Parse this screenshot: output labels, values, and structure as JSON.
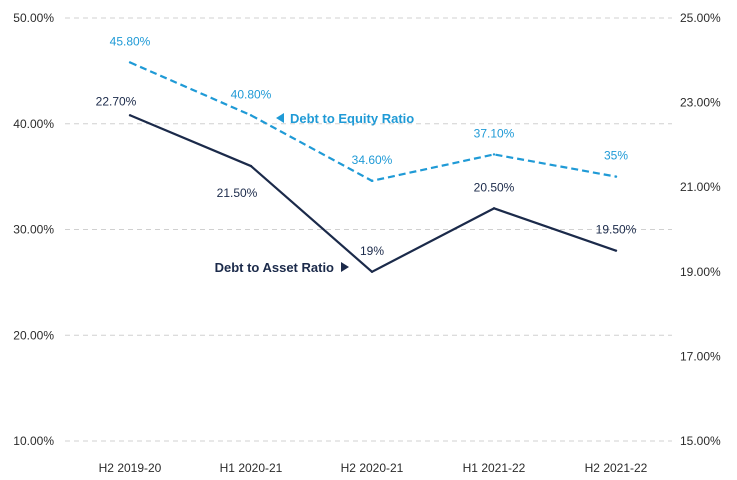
{
  "chart_data": {
    "type": "line",
    "categories": [
      "H2 2019-20",
      "H1 2020-21",
      "H2 2020-21",
      "H1 2021-22",
      "H2 2021-22"
    ],
    "y_left": {
      "ticks": [
        "10.00%",
        "20.00%",
        "30.00%",
        "40.00%",
        "50.00%"
      ],
      "lim": [
        10,
        50
      ]
    },
    "y_right": {
      "ticks": [
        "15.00%",
        "17.00%",
        "19.00%",
        "21.00%",
        "23.00%",
        "25.00%"
      ],
      "lim": [
        15,
        25
      ]
    },
    "grid": "horizontal-dashed",
    "series": [
      {
        "name": "Debt to Equity Ratio",
        "axis": "left",
        "style": "dashed",
        "color": "#1f9ad6",
        "values": [
          45.8,
          40.8,
          34.6,
          37.1,
          35
        ],
        "labels": [
          "45.80%",
          "40.80%",
          "34.60%",
          "37.10%",
          "35%"
        ]
      },
      {
        "name": "Debt to Asset Ratio",
        "axis": "right",
        "style": "solid",
        "color": "#1b2a4a",
        "values": [
          22.7,
          21.5,
          19,
          20.5,
          19.5
        ],
        "labels": [
          "22.70%",
          "21.50%",
          "19%",
          "20.50%",
          "19.50%"
        ]
      }
    ],
    "annotations": [
      {
        "text": "Debt to Equity Ratio",
        "series": 0
      },
      {
        "text": "Debt to Asset Ratio",
        "series": 1
      }
    ]
  }
}
